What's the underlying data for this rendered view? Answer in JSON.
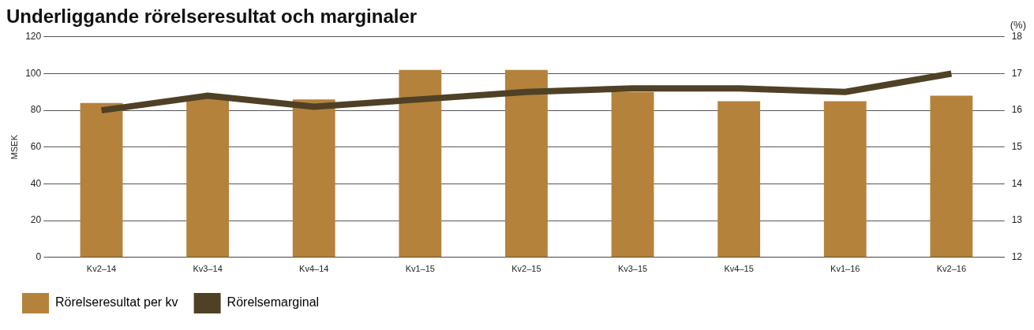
{
  "chart_data": {
    "type": "bar",
    "title": "Underliggande rörelseresultat och marginaler",
    "ylabel": "MSEK",
    "y2label": "(%)",
    "categories": [
      "Kv2–14",
      "Kv3–14",
      "Kv4–14",
      "Kv1–15",
      "Kv2–15",
      "Kv3–15",
      "Kv4–15",
      "Kv1–16",
      "Kv2–16"
    ],
    "series": [
      {
        "name": "Rörelseresultat per kv",
        "color": "#b5823c",
        "values": [
          84,
          87,
          86,
          102,
          102,
          90,
          85,
          85,
          88
        ]
      },
      {
        "name": "Rörelsemarginal",
        "type": "line",
        "axis": "y2",
        "color": "#4f4125",
        "values": [
          16.0,
          16.4,
          16.1,
          16.3,
          16.5,
          16.6,
          16.6,
          16.5,
          17.0
        ]
      }
    ],
    "ylim": [
      0,
      120
    ],
    "yticks": [
      0,
      20,
      40,
      60,
      80,
      100,
      120
    ],
    "y2lim": [
      12,
      18
    ],
    "y2ticks": [
      12,
      13,
      14,
      15,
      16,
      17,
      18
    ],
    "grid": "y",
    "legend": "bottom left",
    "marker": "none"
  }
}
